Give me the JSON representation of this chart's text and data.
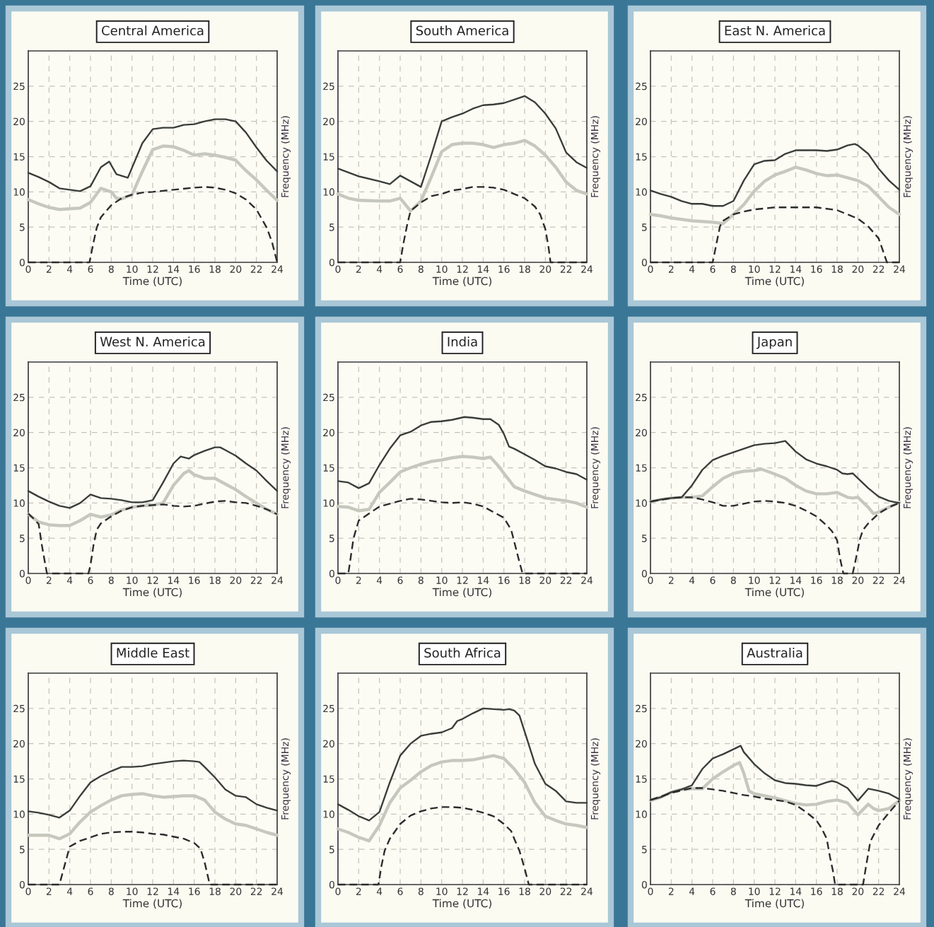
{
  "chart_data": [
    {
      "type": "line",
      "title": "Central America",
      "xlabel": "Time (UTC)",
      "ylabel": "Frequency (MHz)",
      "xlim": [
        0,
        24
      ],
      "xticks": [
        0,
        2,
        4,
        6,
        8,
        10,
        12,
        14,
        16,
        18,
        20,
        22,
        24
      ],
      "ylim": [
        0,
        30
      ],
      "yticks": [
        0,
        5,
        10,
        15,
        20,
        25
      ],
      "grid": true,
      "series": [
        {
          "color": "#c6c8be",
          "line_style": "solid",
          "x": [
            0,
            1,
            2,
            3,
            4,
            5,
            6,
            7,
            8,
            8.5,
            9,
            10,
            11,
            12,
            13,
            14,
            15,
            16,
            17,
            18,
            19,
            20,
            21,
            22,
            23,
            24
          ],
          "values": [
            8.9,
            8.3,
            7.8,
            7.5,
            7.6,
            7.7,
            8.5,
            10.5,
            10.0,
            9.1,
            9.0,
            9.6,
            12.9,
            16.0,
            16.5,
            16.4,
            15.9,
            15.2,
            15.4,
            15.2,
            14.9,
            14.5,
            13.0,
            11.7,
            10.2,
            8.8
          ]
        },
        {
          "color": "#3a3d38",
          "line_style": "solid",
          "x": [
            0,
            1,
            2,
            3,
            4,
            5,
            6,
            7,
            7.8,
            8.5,
            9.6,
            11,
            12,
            13,
            14,
            15,
            16,
            17,
            18,
            19,
            20,
            21,
            22,
            23,
            24
          ],
          "values": [
            12.7,
            12.1,
            11.4,
            10.5,
            10.3,
            10.1,
            10.8,
            13.5,
            14.3,
            12.5,
            12.0,
            16.9,
            18.9,
            19.1,
            19.1,
            19.5,
            19.6,
            20.0,
            20.3,
            20.3,
            20.0,
            18.4,
            16.3,
            14.4,
            12.9
          ]
        },
        {
          "color": "#2b2b2b",
          "line_style": "dashed",
          "x": [
            0,
            5.9,
            6.3,
            6.6,
            7,
            8,
            9,
            10,
            11,
            12,
            14,
            16,
            17,
            18,
            19,
            20,
            21,
            22,
            23,
            23.5,
            24
          ],
          "values": [
            0,
            0,
            2.9,
            4.9,
            6.4,
            8.1,
            9.1,
            9.6,
            9.9,
            10.0,
            10.3,
            10.6,
            10.7,
            10.6,
            10.3,
            9.8,
            8.9,
            7.5,
            4.9,
            2.9,
            0
          ]
        }
      ]
    },
    {
      "type": "line",
      "title": "South America",
      "xlabel": "Time (UTC)",
      "ylabel": "Frequency (MHz)",
      "xlim": [
        0,
        24
      ],
      "xticks": [
        0,
        2,
        4,
        6,
        8,
        10,
        12,
        14,
        16,
        18,
        20,
        22,
        24
      ],
      "ylim": [
        0,
        30
      ],
      "yticks": [
        0,
        5,
        10,
        15,
        20,
        25
      ],
      "grid": true,
      "series": [
        {
          "color": "#c6c8be",
          "line_style": "solid",
          "x": [
            0,
            1,
            2,
            4,
            5,
            6,
            7,
            8,
            9,
            10,
            11,
            12,
            13,
            14,
            15,
            16,
            17,
            18,
            19,
            20,
            21,
            22,
            23,
            24
          ],
          "values": [
            9.7,
            9.1,
            8.8,
            8.7,
            8.7,
            9.1,
            7.3,
            8.7,
            12.1,
            15.7,
            16.7,
            16.9,
            16.9,
            16.7,
            16.3,
            16.7,
            16.9,
            17.3,
            16.5,
            15.2,
            13.5,
            11.4,
            10.2,
            9.7
          ]
        },
        {
          "color": "#3a3d38",
          "line_style": "solid",
          "x": [
            0,
            2,
            4,
            5,
            6,
            7,
            8,
            9,
            10,
            11,
            12,
            13,
            14,
            15,
            16,
            17,
            18,
            19,
            20,
            21,
            22,
            23,
            24
          ],
          "values": [
            13.3,
            12.2,
            11.5,
            11.1,
            12.3,
            11.5,
            10.7,
            15.2,
            20.0,
            20.6,
            21.1,
            21.8,
            22.3,
            22.4,
            22.6,
            23.1,
            23.6,
            22.7,
            21.1,
            19.0,
            15.6,
            14.2,
            13.4
          ]
        },
        {
          "color": "#2b2b2b",
          "line_style": "dashed",
          "x": [
            0,
            6,
            6.3,
            6.7,
            7,
            8,
            9,
            10,
            11,
            12,
            13,
            14,
            15,
            16,
            17,
            18,
            19,
            19.5,
            20,
            20.3,
            20.5,
            24
          ],
          "values": [
            0,
            0,
            2.6,
            5.5,
            7.3,
            8.5,
            9.4,
            9.7,
            10.2,
            10.4,
            10.7,
            10.7,
            10.6,
            10.3,
            9.7,
            9.1,
            7.9,
            6.8,
            4.7,
            2.2,
            0,
            0
          ]
        }
      ]
    },
    {
      "type": "line",
      "title": "East N. America",
      "xlabel": "Time (UTC)",
      "ylabel": "Frequency (MHz)",
      "xlim": [
        0,
        24
      ],
      "xticks": [
        0,
        2,
        4,
        6,
        8,
        10,
        12,
        14,
        16,
        18,
        20,
        22,
        24
      ],
      "ylim": [
        0,
        30
      ],
      "yticks": [
        0,
        5,
        10,
        15,
        20,
        25
      ],
      "grid": true,
      "series": [
        {
          "color": "#c6c8be",
          "line_style": "solid",
          "x": [
            0,
            1,
            2,
            3,
            4,
            5,
            6,
            7,
            8,
            9,
            10,
            11,
            12,
            13,
            14,
            15,
            16,
            17,
            18,
            19,
            20,
            21,
            22,
            23,
            24
          ],
          "values": [
            6.8,
            6.6,
            6.3,
            6.1,
            5.9,
            5.8,
            5.7,
            5.5,
            6.8,
            8.2,
            10.1,
            11.5,
            12.4,
            12.9,
            13.5,
            13.1,
            12.6,
            12.3,
            12.4,
            12.0,
            11.6,
            10.8,
            9.3,
            7.8,
            6.8
          ]
        },
        {
          "color": "#3a3d38",
          "line_style": "solid",
          "x": [
            0,
            1,
            2,
            3,
            4,
            5,
            6,
            7,
            8,
            9,
            10,
            11,
            12,
            13,
            14,
            15,
            16,
            17,
            18,
            19,
            19.7,
            20,
            21,
            22,
            23,
            24
          ],
          "values": [
            10.2,
            9.7,
            9.3,
            8.7,
            8.3,
            8.3,
            8.0,
            8.0,
            8.7,
            11.6,
            13.9,
            14.4,
            14.5,
            15.4,
            15.9,
            15.9,
            15.9,
            15.8,
            16.0,
            16.6,
            16.8,
            16.6,
            15.4,
            13.3,
            11.6,
            10.3
          ]
        },
        {
          "color": "#2b2b2b",
          "line_style": "dashed",
          "x": [
            0,
            6,
            6.3,
            6.7,
            7,
            8,
            9,
            10,
            12,
            14,
            16,
            18,
            19,
            20,
            21,
            22,
            22.5,
            22.8,
            24
          ],
          "values": [
            0,
            0,
            2.2,
            5.1,
            5.9,
            6.8,
            7.2,
            7.5,
            7.8,
            7.8,
            7.8,
            7.4,
            6.8,
            6.2,
            5.1,
            3.4,
            1.3,
            0,
            0
          ]
        }
      ]
    },
    {
      "type": "line",
      "title": "West N. America",
      "xlabel": "Time (UTC)",
      "ylabel": "Frequency (MHz)",
      "xlim": [
        0,
        24
      ],
      "xticks": [
        0,
        2,
        4,
        6,
        8,
        10,
        12,
        14,
        16,
        18,
        20,
        22,
        24
      ],
      "ylim": [
        0,
        30
      ],
      "yticks": [
        0,
        5,
        10,
        15,
        20,
        25
      ],
      "grid": true,
      "series": [
        {
          "color": "#c6c8be",
          "line_style": "solid",
          "x": [
            0,
            1,
            2,
            3,
            4,
            5,
            6,
            7,
            8,
            9,
            10,
            11,
            12,
            13,
            14,
            15,
            15.5,
            16,
            17,
            18,
            19,
            20,
            21,
            22,
            23,
            24
          ],
          "values": [
            8.4,
            7.3,
            6.9,
            6.8,
            6.8,
            7.5,
            8.4,
            8.0,
            8.3,
            9.0,
            9.4,
            9.6,
            9.7,
            10.0,
            12.5,
            14.2,
            14.6,
            14.0,
            13.5,
            13.5,
            12.7,
            11.9,
            10.9,
            10.0,
            9.1,
            8.4
          ]
        },
        {
          "color": "#3a3d38",
          "line_style": "solid",
          "x": [
            0,
            1,
            2,
            3,
            4,
            5,
            6,
            7,
            8,
            9,
            10,
            11,
            12,
            13,
            14,
            14.7,
            15.5,
            16,
            17,
            18,
            18.5,
            19,
            20,
            21,
            22,
            23,
            24
          ],
          "values": [
            11.7,
            10.9,
            10.2,
            9.6,
            9.3,
            10.0,
            11.2,
            10.7,
            10.6,
            10.4,
            10.1,
            10.1,
            10.4,
            12.9,
            15.6,
            16.6,
            16.3,
            16.8,
            17.4,
            17.9,
            17.9,
            17.5,
            16.7,
            15.6,
            14.6,
            13.1,
            11.7
          ]
        },
        {
          "color": "#2b2b2b",
          "line_style": "dashed",
          "x": [
            0,
            0.5,
            1,
            1.3,
            1.6,
            1.8,
            5.8,
            6,
            6.3,
            6.6,
            7,
            8,
            9,
            10,
            11,
            12,
            13,
            14,
            15,
            16,
            17,
            18,
            19,
            20,
            21,
            22,
            23,
            24
          ],
          "values": [
            8.5,
            7.8,
            7.0,
            4.1,
            1.6,
            0,
            0,
            1.2,
            4.1,
            6.2,
            7.1,
            8.1,
            8.9,
            9.4,
            9.6,
            9.7,
            9.8,
            9.6,
            9.5,
            9.6,
            9.9,
            10.2,
            10.3,
            10.1,
            10.0,
            9.6,
            9.1,
            8.4
          ]
        }
      ]
    },
    {
      "type": "line",
      "title": "India",
      "xlabel": "Time (UTC)",
      "ylabel": "Frequency (MHz)",
      "xlim": [
        0,
        24
      ],
      "xticks": [
        0,
        2,
        4,
        6,
        8,
        10,
        12,
        14,
        16,
        18,
        20,
        22,
        24
      ],
      "ylim": [
        0,
        30
      ],
      "yticks": [
        0,
        5,
        10,
        15,
        20,
        25
      ],
      "grid": true,
      "series": [
        {
          "color": "#c6c8be",
          "line_style": "solid",
          "x": [
            0,
            1,
            2,
            3,
            4,
            5,
            6,
            7,
            8,
            9,
            10,
            11,
            12,
            13,
            14,
            14.7,
            15.5,
            16,
            17,
            18,
            19,
            20,
            21,
            22,
            23,
            24
          ],
          "values": [
            9.5,
            9.4,
            8.9,
            9.1,
            11.5,
            12.9,
            14.4,
            15.0,
            15.5,
            15.9,
            16.1,
            16.4,
            16.6,
            16.5,
            16.3,
            16.5,
            15.2,
            14.2,
            12.3,
            11.7,
            11.2,
            10.7,
            10.5,
            10.3,
            10.0,
            9.4
          ]
        },
        {
          "color": "#3a3d38",
          "line_style": "solid",
          "x": [
            0,
            1,
            2,
            3,
            4,
            5,
            6,
            7,
            8,
            9,
            10,
            11,
            12.2,
            13,
            14,
            14.7,
            15.5,
            16,
            16.5,
            17,
            18,
            19,
            20,
            21,
            22,
            23,
            24
          ],
          "values": [
            13.1,
            12.9,
            12.1,
            12.8,
            15.4,
            17.7,
            19.6,
            20.1,
            21.0,
            21.5,
            21.6,
            21.8,
            22.2,
            22.1,
            21.9,
            21.9,
            21.1,
            19.8,
            18.0,
            17.7,
            16.9,
            16.1,
            15.2,
            14.9,
            14.4,
            14.1,
            13.3
          ]
        },
        {
          "color": "#2b2b2b",
          "line_style": "dashed",
          "x": [
            0,
            1,
            1.5,
            2,
            3,
            4,
            5,
            6,
            7,
            8,
            9,
            10,
            11,
            12,
            13,
            14,
            15,
            16,
            16.7,
            17,
            17.5,
            17.8,
            24
          ],
          "values": [
            0,
            0,
            5.0,
            7.5,
            8.5,
            9.5,
            9.9,
            10.3,
            10.6,
            10.5,
            10.3,
            10.1,
            10.0,
            10.1,
            9.9,
            9.5,
            8.7,
            7.9,
            6.2,
            4.5,
            1.6,
            0,
            0
          ]
        }
      ]
    },
    {
      "type": "line",
      "title": "Japan",
      "xlabel": "Time (UTC)",
      "ylabel": "Frequency (MHz)",
      "xlim": [
        0,
        24
      ],
      "xticks": [
        0,
        2,
        4,
        6,
        8,
        10,
        12,
        14,
        16,
        18,
        20,
        22,
        24
      ],
      "ylim": [
        0,
        30
      ],
      "yticks": [
        0,
        5,
        10,
        15,
        20,
        25
      ],
      "grid": true,
      "series": [
        {
          "color": "#c6c8be",
          "line_style": "solid",
          "x": [
            0,
            1,
            2,
            3,
            4,
            5,
            6,
            7,
            8,
            9,
            10,
            10.7,
            12,
            13,
            14,
            15,
            16,
            17,
            18,
            19,
            19.5,
            20,
            21,
            21.5,
            22,
            23,
            24
          ],
          "values": [
            10.2,
            10.5,
            10.7,
            10.8,
            10.8,
            11.0,
            12.3,
            13.5,
            14.2,
            14.5,
            14.6,
            14.8,
            14.1,
            13.5,
            12.5,
            11.7,
            11.3,
            11.3,
            11.5,
            10.8,
            10.7,
            10.8,
            9.4,
            8.5,
            8.7,
            9.4,
            10.1
          ]
        },
        {
          "color": "#3a3d38",
          "line_style": "solid",
          "x": [
            0,
            1,
            2,
            3,
            4,
            5,
            6,
            7,
            8,
            9,
            10,
            11,
            12,
            13,
            14,
            15,
            16,
            17,
            18,
            18.5,
            19,
            19.5,
            20,
            21,
            22,
            23,
            24
          ],
          "values": [
            10.2,
            10.5,
            10.7,
            10.8,
            12.5,
            14.7,
            16.1,
            16.7,
            17.2,
            17.7,
            18.2,
            18.4,
            18.5,
            18.8,
            17.3,
            16.2,
            15.6,
            15.2,
            14.7,
            14.2,
            14.1,
            14.2,
            13.5,
            12.1,
            10.9,
            10.3,
            10.0
          ]
        },
        {
          "color": "#2b2b2b",
          "line_style": "dashed",
          "x": [
            0,
            2,
            3,
            4,
            5,
            6,
            7,
            8,
            9,
            10,
            11,
            12,
            13,
            14,
            15,
            16,
            17,
            17.5,
            18,
            18.3,
            18.6,
            19.5,
            19.8,
            20.2,
            20.5,
            21,
            22,
            23,
            24
          ],
          "values": [
            10.2,
            10.7,
            10.8,
            10.8,
            10.5,
            10.1,
            9.6,
            9.6,
            9.9,
            10.2,
            10.3,
            10.2,
            10.0,
            9.6,
            8.9,
            8.1,
            6.8,
            6.0,
            4.7,
            2.0,
            0,
            0,
            2.0,
            4.9,
            6.2,
            7.1,
            8.5,
            9.4,
            10.0
          ]
        }
      ]
    },
    {
      "type": "line",
      "title": "Middle East",
      "xlabel": "Time (UTC)",
      "ylabel": "Frequency (MHz)",
      "xlim": [
        0,
        24
      ],
      "xticks": [
        0,
        2,
        4,
        6,
        8,
        10,
        12,
        14,
        16,
        18,
        20,
        22,
        24
      ],
      "ylim": [
        0,
        30
      ],
      "yticks": [
        0,
        5,
        10,
        15,
        20,
        25
      ],
      "grid": true,
      "series": [
        {
          "color": "#c6c8be",
          "line_style": "solid",
          "x": [
            0,
            2,
            3,
            4,
            5,
            6,
            7,
            8,
            9,
            10,
            11,
            12,
            13,
            14,
            15,
            16,
            17,
            18,
            19,
            20,
            21,
            22,
            23,
            24
          ],
          "values": [
            7.0,
            7.0,
            6.5,
            7.2,
            8.9,
            10.3,
            11.2,
            12.0,
            12.6,
            12.8,
            12.9,
            12.6,
            12.4,
            12.5,
            12.6,
            12.6,
            12.0,
            10.3,
            9.3,
            8.6,
            8.4,
            7.9,
            7.4,
            7.0
          ]
        },
        {
          "color": "#3a3d38",
          "line_style": "solid",
          "x": [
            0,
            1,
            2,
            3,
            4,
            5,
            6,
            7,
            8,
            9,
            10,
            11,
            12,
            13,
            14,
            15,
            16,
            16.5,
            17,
            18,
            19,
            20,
            21,
            22,
            23,
            24
          ],
          "values": [
            10.4,
            10.2,
            9.9,
            9.5,
            10.5,
            12.6,
            14.5,
            15.4,
            16.1,
            16.7,
            16.7,
            16.8,
            17.1,
            17.3,
            17.5,
            17.6,
            17.5,
            17.4,
            16.7,
            15.2,
            13.5,
            12.6,
            12.4,
            11.4,
            10.9,
            10.5
          ]
        },
        {
          "color": "#2b2b2b",
          "line_style": "dashed",
          "x": [
            0,
            3,
            3.5,
            4,
            5,
            6,
            7,
            8,
            9,
            10,
            11,
            12,
            13,
            14,
            15,
            16,
            16.6,
            17,
            17.5,
            24
          ],
          "values": [
            0,
            0,
            2.7,
            5.4,
            6.2,
            6.7,
            7.2,
            7.4,
            7.5,
            7.5,
            7.4,
            7.2,
            7.1,
            6.8,
            6.5,
            5.9,
            5.1,
            3.2,
            0,
            0
          ]
        }
      ]
    },
    {
      "type": "line",
      "title": "South Africa",
      "xlabel": "Time (UTC)",
      "ylabel": "Frequency (MHz)",
      "xlim": [
        0,
        24
      ],
      "xticks": [
        0,
        2,
        4,
        6,
        8,
        10,
        12,
        14,
        16,
        18,
        20,
        22,
        24
      ],
      "ylim": [
        0,
        30
      ],
      "yticks": [
        0,
        5,
        10,
        15,
        20,
        25
      ],
      "grid": true,
      "series": [
        {
          "color": "#c6c8be",
          "line_style": "solid",
          "x": [
            0,
            1,
            2,
            3,
            4,
            5,
            6,
            7,
            8,
            9,
            10,
            11,
            12,
            13,
            14,
            15,
            16,
            17,
            18,
            19,
            20,
            21,
            22,
            23,
            24
          ],
          "values": [
            7.9,
            7.4,
            6.7,
            6.2,
            8.4,
            11.6,
            13.7,
            14.8,
            16.0,
            16.9,
            17.4,
            17.6,
            17.6,
            17.7,
            18.0,
            18.3,
            17.9,
            16.4,
            14.5,
            11.6,
            9.7,
            9.1,
            8.6,
            8.4,
            8.1
          ]
        },
        {
          "color": "#3a3d38",
          "line_style": "solid",
          "x": [
            0,
            1,
            2,
            3,
            4,
            5,
            6,
            7,
            8,
            9,
            10,
            11,
            11.5,
            12,
            13,
            14,
            15,
            16,
            16.5,
            17,
            17.5,
            18,
            19,
            20,
            21,
            22,
            23,
            24
          ],
          "values": [
            11.4,
            10.6,
            9.7,
            9.1,
            10.3,
            14.5,
            18.3,
            20.0,
            21.1,
            21.4,
            21.6,
            22.2,
            23.2,
            23.5,
            24.3,
            25.0,
            24.9,
            24.8,
            24.9,
            24.7,
            24.0,
            21.7,
            17.1,
            14.3,
            13.3,
            11.8,
            11.6,
            11.6
          ]
        },
        {
          "color": "#2b2b2b",
          "line_style": "dashed",
          "x": [
            0,
            3.9,
            4.2,
            4.5,
            5,
            6,
            7,
            8,
            9,
            10,
            11,
            12,
            13,
            14,
            15,
            16,
            16.7,
            17,
            17.5,
            18,
            18.4,
            24
          ],
          "values": [
            0,
            0,
            2.7,
            4.8,
            6.5,
            8.6,
            9.8,
            10.4,
            10.8,
            11.0,
            11.0,
            10.9,
            10.6,
            10.2,
            9.7,
            8.6,
            7.6,
            6.5,
            4.8,
            2.3,
            0,
            0
          ]
        }
      ]
    },
    {
      "type": "line",
      "title": "Australia",
      "xlabel": "Time (UTC)",
      "ylabel": "Frequency (MHz)",
      "xlim": [
        0,
        24
      ],
      "xticks": [
        0,
        2,
        4,
        6,
        8,
        10,
        12,
        14,
        16,
        18,
        20,
        22,
        24
      ],
      "ylim": [
        0,
        30
      ],
      "yticks": [
        0,
        5,
        10,
        15,
        20,
        25
      ],
      "grid": true,
      "series": [
        {
          "color": "#c6c8be",
          "line_style": "solid",
          "x": [
            0,
            1,
            2,
            3,
            4,
            5,
            6,
            7,
            8,
            8.6,
            9,
            9.5,
            10,
            11,
            12,
            13,
            14,
            15,
            16,
            17,
            18,
            19,
            20,
            21,
            21.5,
            22,
            23,
            24
          ],
          "values": [
            11.9,
            12.4,
            13.1,
            13.5,
            13.6,
            13.6,
            15.0,
            16.0,
            16.9,
            17.3,
            15.8,
            13.3,
            12.9,
            12.6,
            12.3,
            11.9,
            11.5,
            11.3,
            11.4,
            11.8,
            12.0,
            11.6,
            9.9,
            11.4,
            10.8,
            10.5,
            10.8,
            11.9
          ]
        },
        {
          "color": "#3a3d38",
          "line_style": "solid",
          "x": [
            0,
            1,
            2,
            3,
            4,
            5,
            6,
            7,
            8,
            8.7,
            9,
            10,
            11,
            12,
            13,
            14,
            15,
            16,
            17,
            17.5,
            18,
            19,
            20,
            21,
            22,
            23,
            24
          ],
          "values": [
            12.0,
            12.4,
            13.1,
            13.5,
            14.1,
            16.4,
            17.9,
            18.5,
            19.2,
            19.7,
            18.8,
            17.1,
            15.8,
            14.8,
            14.4,
            14.3,
            14.1,
            14.0,
            14.5,
            14.7,
            14.5,
            13.7,
            11.9,
            13.6,
            13.3,
            12.9,
            12.1
          ]
        },
        {
          "color": "#2b2b2b",
          "line_style": "dashed",
          "x": [
            0,
            2,
            4,
            5,
            6,
            7,
            8,
            9,
            10,
            11,
            12,
            13,
            14,
            15,
            16,
            16.5,
            17,
            17.3,
            17.6,
            17.8,
            20.5,
            20.8,
            21.2,
            22,
            23,
            24
          ],
          "values": [
            12.0,
            13.0,
            13.7,
            13.7,
            13.5,
            13.3,
            13.0,
            12.7,
            12.5,
            12.2,
            12.0,
            11.8,
            11.3,
            10.3,
            9.1,
            8.0,
            6.5,
            4.0,
            1.9,
            0,
            0,
            2.7,
            6.1,
            8.4,
            10.2,
            11.9
          ]
        }
      ]
    }
  ]
}
